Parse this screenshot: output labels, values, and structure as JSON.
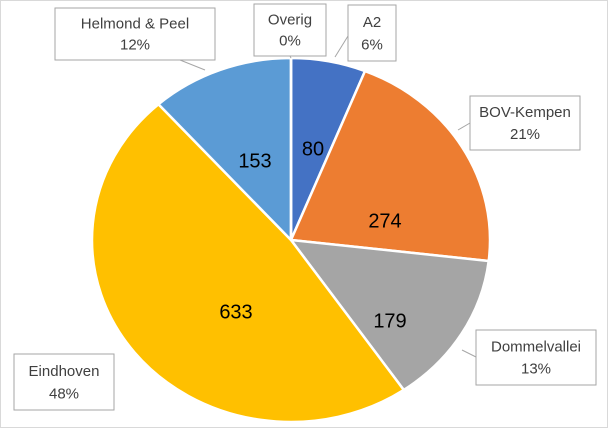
{
  "chart_data": {
    "type": "pie",
    "categories": [
      "A2",
      "BOV-Kempen",
      "Dommelvallei",
      "Eindhoven",
      "Helmond & Peel",
      "Overig"
    ],
    "values": [
      80,
      274,
      179,
      633,
      153,
      0
    ],
    "percent_labels": [
      "6%",
      "21%",
      "13%",
      "48%",
      "12%",
      "0%"
    ],
    "colors": [
      "#4472c4",
      "#ed7d31",
      "#a5a5a5",
      "#ffc000",
      "#5b9bd5",
      "#70ad47"
    ]
  }
}
